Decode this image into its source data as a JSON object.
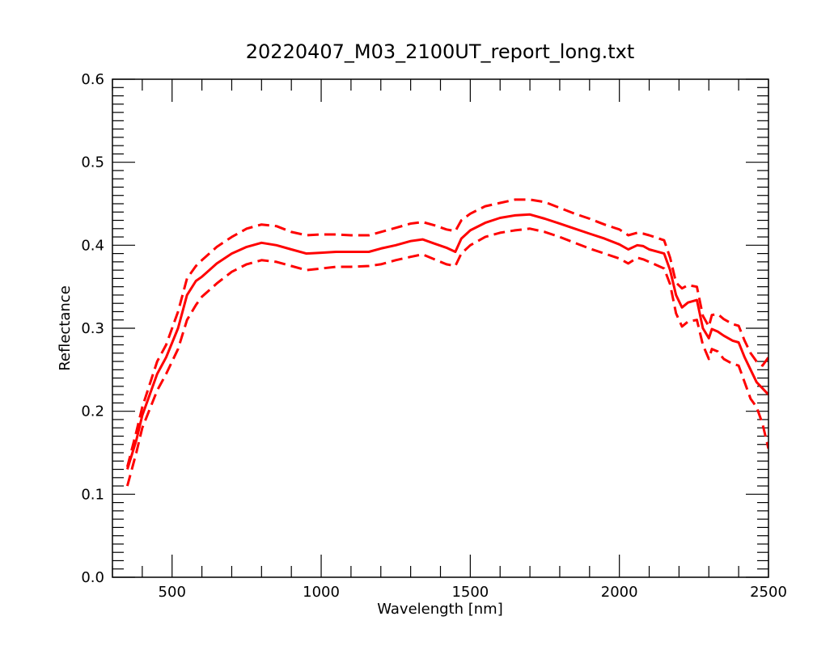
{
  "chart_data": {
    "type": "line",
    "title": "20220407_M03_2100UT_report_long.txt",
    "xlabel": "Wavelength [nm]",
    "ylabel": "Reflectance",
    "xlim": [
      300,
      2500
    ],
    "ylim": [
      0.0,
      0.6
    ],
    "x_major_ticks": [
      500,
      1000,
      1500,
      2000,
      2500
    ],
    "x_tick_labels": [
      "500",
      "1000",
      "1500",
      "2000",
      "2500"
    ],
    "x_minor_step": 100,
    "y_major_ticks": [
      0.0,
      0.1,
      0.2,
      0.3,
      0.4,
      0.5,
      0.6
    ],
    "y_tick_labels": [
      "0.0",
      "0.1",
      "0.2",
      "0.3",
      "0.4",
      "0.5",
      "0.6"
    ],
    "y_minor_step": 0.01,
    "grid": false,
    "legend": "none",
    "series": [
      {
        "style": "solid",
        "color": "#ff0000",
        "x": [
          350,
          380,
          400,
          450,
          480,
          520,
          550,
          580,
          600,
          650,
          700,
          750,
          800,
          850,
          900,
          950,
          1000,
          1050,
          1100,
          1160,
          1200,
          1250,
          1300,
          1340,
          1380,
          1420,
          1450,
          1470,
          1500,
          1550,
          1600,
          1650,
          1700,
          1750,
          1800,
          1850,
          1900,
          1950,
          2000,
          2030,
          2060,
          2080,
          2100,
          2150,
          2170,
          2190,
          2210,
          2230,
          2260,
          2280,
          2300,
          2310,
          2330,
          2350,
          2380,
          2400,
          2420,
          2440,
          2460,
          2500
        ],
        "y": [
          0.13,
          0.165,
          0.195,
          0.245,
          0.265,
          0.3,
          0.34,
          0.357,
          0.362,
          0.378,
          0.39,
          0.398,
          0.403,
          0.4,
          0.395,
          0.39,
          0.391,
          0.392,
          0.392,
          0.392,
          0.396,
          0.4,
          0.405,
          0.407,
          0.402,
          0.397,
          0.392,
          0.408,
          0.418,
          0.427,
          0.433,
          0.436,
          0.437,
          0.432,
          0.426,
          0.42,
          0.414,
          0.408,
          0.401,
          0.395,
          0.4,
          0.399,
          0.395,
          0.39,
          0.37,
          0.34,
          0.325,
          0.331,
          0.334,
          0.3,
          0.288,
          0.299,
          0.296,
          0.291,
          0.285,
          0.283,
          0.265,
          0.25,
          0.235,
          0.22
        ]
      },
      {
        "style": "dashed",
        "color": "#ff0000",
        "x": [
          350,
          380,
          400,
          450,
          480,
          520,
          550,
          580,
          600,
          650,
          700,
          750,
          800,
          850,
          900,
          950,
          1000,
          1050,
          1100,
          1160,
          1200,
          1250,
          1300,
          1340,
          1380,
          1420,
          1450,
          1470,
          1500,
          1550,
          1600,
          1650,
          1700,
          1750,
          1800,
          1850,
          1900,
          1950,
          2000,
          2030,
          2060,
          2080,
          2100,
          2150,
          2170,
          2190,
          2210,
          2230,
          2260,
          2280,
          2300,
          2310,
          2330,
          2350,
          2380,
          2400,
          2420,
          2440,
          2460,
          2480,
          2500
        ],
        "y": [
          0.133,
          0.175,
          0.205,
          0.26,
          0.28,
          0.32,
          0.36,
          0.375,
          0.382,
          0.398,
          0.41,
          0.42,
          0.425,
          0.423,
          0.416,
          0.412,
          0.413,
          0.413,
          0.412,
          0.412,
          0.416,
          0.421,
          0.426,
          0.428,
          0.424,
          0.419,
          0.417,
          0.43,
          0.438,
          0.447,
          0.451,
          0.455,
          0.455,
          0.452,
          0.445,
          0.438,
          0.432,
          0.425,
          0.419,
          0.412,
          0.415,
          0.414,
          0.412,
          0.406,
          0.385,
          0.355,
          0.348,
          0.352,
          0.35,
          0.315,
          0.302,
          0.316,
          0.317,
          0.311,
          0.305,
          0.303,
          0.285,
          0.27,
          0.26,
          0.255,
          0.265
        ]
      },
      {
        "style": "dashed",
        "color": "#ff0000",
        "x": [
          350,
          380,
          400,
          450,
          480,
          520,
          550,
          580,
          600,
          650,
          700,
          750,
          800,
          850,
          900,
          950,
          1000,
          1050,
          1100,
          1160,
          1200,
          1250,
          1300,
          1340,
          1380,
          1420,
          1450,
          1470,
          1500,
          1550,
          1600,
          1650,
          1700,
          1750,
          1800,
          1850,
          1900,
          1950,
          2000,
          2030,
          2060,
          2080,
          2100,
          2150,
          2170,
          2190,
          2210,
          2230,
          2260,
          2280,
          2300,
          2310,
          2330,
          2350,
          2380,
          2400,
          2420,
          2440,
          2460,
          2480,
          2500
        ],
        "y": [
          0.11,
          0.15,
          0.18,
          0.225,
          0.245,
          0.275,
          0.31,
          0.328,
          0.338,
          0.354,
          0.368,
          0.377,
          0.382,
          0.38,
          0.375,
          0.37,
          0.372,
          0.374,
          0.374,
          0.375,
          0.377,
          0.382,
          0.386,
          0.389,
          0.383,
          0.377,
          0.375,
          0.39,
          0.4,
          0.41,
          0.415,
          0.418,
          0.42,
          0.416,
          0.41,
          0.403,
          0.396,
          0.39,
          0.384,
          0.378,
          0.385,
          0.383,
          0.38,
          0.372,
          0.353,
          0.318,
          0.302,
          0.308,
          0.31,
          0.28,
          0.263,
          0.275,
          0.272,
          0.263,
          0.257,
          0.255,
          0.235,
          0.215,
          0.205,
          0.185,
          0.155
        ]
      }
    ]
  }
}
